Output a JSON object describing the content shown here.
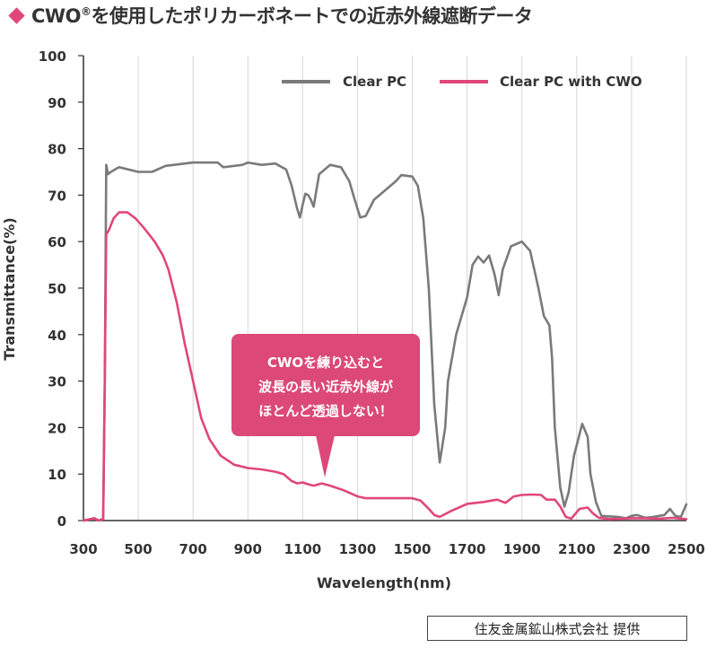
{
  "title": {
    "text": "CWO",
    "mark": "®",
    "rest": "を使用したポリカーボネートでの近赤外線遮断データ"
  },
  "credit": "住友金属鉱山株式会社 提供",
  "colors": {
    "accent": "#e0477a",
    "clear_pc": "#7a7a7a",
    "cwo": "#e0477a",
    "callout": "#dc4877"
  },
  "chart_data": {
    "type": "line",
    "xlabel": "Wavelength(nm)",
    "ylabel": "Transmittance(%)",
    "xlim": [
      300,
      2500
    ],
    "ylim": [
      0,
      100
    ],
    "xticks": [
      300,
      500,
      700,
      900,
      1100,
      1300,
      1500,
      1700,
      1900,
      2100,
      2300,
      2500
    ],
    "yticks": [
      0,
      10,
      20,
      30,
      40,
      50,
      60,
      70,
      80,
      90,
      100
    ],
    "grid": "vertical",
    "legend_position": "top-right",
    "annotation": [
      "CWOを練り込むと",
      "波長の長い近赤外線が",
      "ほとんど透過しない！"
    ],
    "series": [
      {
        "name": "Clear PC",
        "color": "#7a7a7a",
        "points": [
          [
            300,
            0
          ],
          [
            340,
            0.5
          ],
          [
            355,
            0
          ],
          [
            372,
            0.3
          ],
          [
            378,
            30
          ],
          [
            383,
            76.5
          ],
          [
            390,
            74.5
          ],
          [
            400,
            75
          ],
          [
            430,
            76
          ],
          [
            500,
            75
          ],
          [
            550,
            75
          ],
          [
            600,
            76.3
          ],
          [
            700,
            77
          ],
          [
            790,
            77
          ],
          [
            810,
            76
          ],
          [
            880,
            76.5
          ],
          [
            900,
            77
          ],
          [
            950,
            76.5
          ],
          [
            1000,
            76.8
          ],
          [
            1040,
            75.5
          ],
          [
            1060,
            72
          ],
          [
            1080,
            67
          ],
          [
            1090,
            65.2
          ],
          [
            1100,
            68
          ],
          [
            1110,
            70.3
          ],
          [
            1120,
            70
          ],
          [
            1130,
            69
          ],
          [
            1140,
            67.5
          ],
          [
            1150,
            71
          ],
          [
            1160,
            74.5
          ],
          [
            1200,
            76.5
          ],
          [
            1240,
            76
          ],
          [
            1270,
            73
          ],
          [
            1290,
            69
          ],
          [
            1310,
            65.2
          ],
          [
            1330,
            65.5
          ],
          [
            1360,
            69
          ],
          [
            1400,
            71
          ],
          [
            1440,
            73
          ],
          [
            1460,
            74.3
          ],
          [
            1500,
            74
          ],
          [
            1520,
            72
          ],
          [
            1540,
            65
          ],
          [
            1560,
            50
          ],
          [
            1580,
            25
          ],
          [
            1600,
            12.5
          ],
          [
            1620,
            20
          ],
          [
            1630,
            30
          ],
          [
            1660,
            40
          ],
          [
            1700,
            48
          ],
          [
            1720,
            55
          ],
          [
            1740,
            56.8
          ],
          [
            1760,
            55.5
          ],
          [
            1780,
            57
          ],
          [
            1800,
            53
          ],
          [
            1815,
            48.5
          ],
          [
            1830,
            54
          ],
          [
            1860,
            59
          ],
          [
            1900,
            60
          ],
          [
            1930,
            58
          ],
          [
            1960,
            50
          ],
          [
            1980,
            44
          ],
          [
            2000,
            42
          ],
          [
            2010,
            35
          ],
          [
            2020,
            20
          ],
          [
            2040,
            7
          ],
          [
            2055,
            3
          ],
          [
            2070,
            6
          ],
          [
            2090,
            14
          ],
          [
            2120,
            20.8
          ],
          [
            2140,
            18
          ],
          [
            2150,
            10
          ],
          [
            2170,
            4
          ],
          [
            2190,
            1
          ],
          [
            2250,
            0.8
          ],
          [
            2280,
            0.5
          ],
          [
            2300,
            1
          ],
          [
            2320,
            1.2
          ],
          [
            2350,
            0.6
          ],
          [
            2380,
            0.8
          ],
          [
            2420,
            1.2
          ],
          [
            2440,
            2.5
          ],
          [
            2460,
            1
          ],
          [
            2480,
            0.8
          ],
          [
            2500,
            3.5
          ]
        ]
      },
      {
        "name": "Clear PC with CWO",
        "color": "#e0477a",
        "points": [
          [
            300,
            0
          ],
          [
            340,
            0.5
          ],
          [
            355,
            0
          ],
          [
            372,
            0.3
          ],
          [
            378,
            30
          ],
          [
            383,
            61.5
          ],
          [
            393,
            62.5
          ],
          [
            410,
            65
          ],
          [
            430,
            66.3
          ],
          [
            460,
            66.3
          ],
          [
            490,
            65
          ],
          [
            520,
            63
          ],
          [
            560,
            60
          ],
          [
            590,
            57
          ],
          [
            610,
            54
          ],
          [
            640,
            47
          ],
          [
            670,
            38
          ],
          [
            700,
            30
          ],
          [
            730,
            22
          ],
          [
            760,
            17.5
          ],
          [
            800,
            14
          ],
          [
            850,
            12
          ],
          [
            900,
            11.3
          ],
          [
            950,
            11
          ],
          [
            1000,
            10.5
          ],
          [
            1030,
            10
          ],
          [
            1060,
            8.5
          ],
          [
            1080,
            8
          ],
          [
            1100,
            8.2
          ],
          [
            1120,
            7.8
          ],
          [
            1140,
            7.5
          ],
          [
            1170,
            8
          ],
          [
            1200,
            7.5
          ],
          [
            1250,
            6.5
          ],
          [
            1300,
            5.2
          ],
          [
            1330,
            4.8
          ],
          [
            1400,
            4.8
          ],
          [
            1450,
            4.8
          ],
          [
            1500,
            4.8
          ],
          [
            1530,
            4.3
          ],
          [
            1560,
            2.5
          ],
          [
            1580,
            1.2
          ],
          [
            1600,
            0.8
          ],
          [
            1640,
            2
          ],
          [
            1700,
            3.6
          ],
          [
            1760,
            4
          ],
          [
            1810,
            4.5
          ],
          [
            1840,
            3.8
          ],
          [
            1870,
            5.2
          ],
          [
            1900,
            5.5
          ],
          [
            1940,
            5.6
          ],
          [
            1970,
            5.5
          ],
          [
            1990,
            4.5
          ],
          [
            2020,
            4.5
          ],
          [
            2040,
            3
          ],
          [
            2060,
            0.8
          ],
          [
            2080,
            0.4
          ],
          [
            2110,
            2.5
          ],
          [
            2140,
            2.8
          ],
          [
            2160,
            1.5
          ],
          [
            2180,
            0.6
          ],
          [
            2220,
            0.3
          ],
          [
            2300,
            0.5
          ],
          [
            2350,
            0.5
          ],
          [
            2400,
            0.4
          ],
          [
            2450,
            0.6
          ],
          [
            2500,
            0.3
          ]
        ]
      }
    ]
  }
}
